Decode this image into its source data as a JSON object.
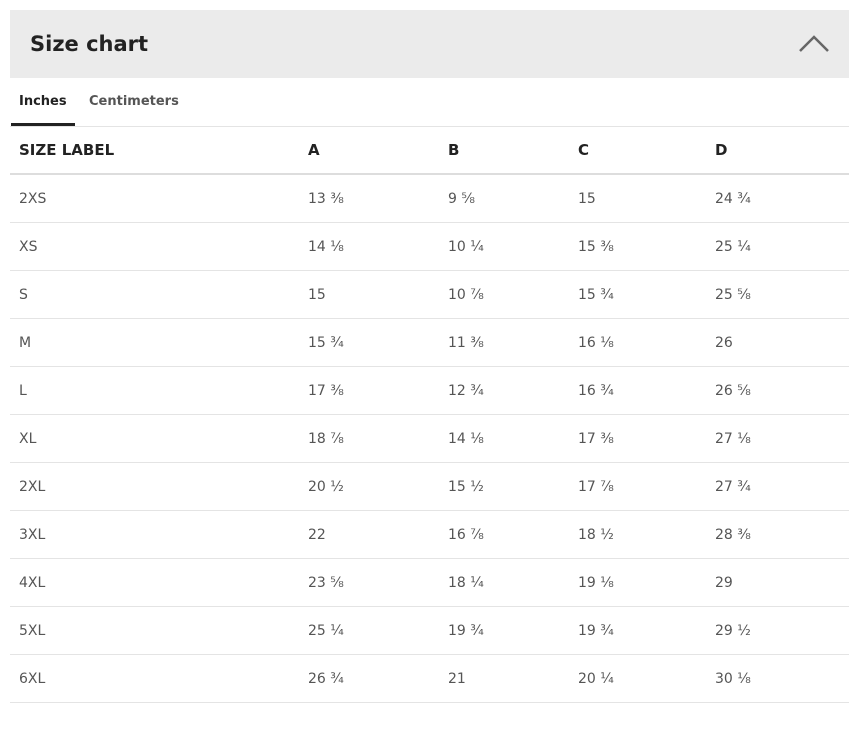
{
  "header": {
    "title": "Size chart"
  },
  "tabs": [
    "Inches",
    "Centimeters"
  ],
  "table": {
    "columns": [
      "SIZE LABEL",
      "A",
      "B",
      "C",
      "D"
    ],
    "rows": [
      [
        "2XS",
        "13 ⅜",
        "9 ⅝",
        "15",
        "24 ¾"
      ],
      [
        "XS",
        "14 ⅛",
        "10 ¼",
        "15 ⅜",
        "25 ¼"
      ],
      [
        "S",
        "15",
        "10 ⅞",
        "15 ¾",
        "25 ⅝"
      ],
      [
        "M",
        "15 ¾",
        "11 ⅜",
        "16 ⅛",
        "26"
      ],
      [
        "L",
        "17 ⅜",
        "12 ¾",
        "16 ¾",
        "26 ⅝"
      ],
      [
        "XL",
        "18 ⅞",
        "14 ⅛",
        "17 ⅜",
        "27 ⅛"
      ],
      [
        "2XL",
        "20 ½",
        "15 ½",
        "17 ⅞",
        "27 ¾"
      ],
      [
        "3XL",
        "22",
        "16 ⅞",
        "18 ½",
        "28 ⅜"
      ],
      [
        "4XL",
        "23 ⅝",
        "18 ¼",
        "19 ⅛",
        "29"
      ],
      [
        "5XL",
        "25 ¼",
        "19 ¾",
        "19 ¾",
        "29 ½"
      ],
      [
        "6XL",
        "26 ¾",
        "21",
        "20 ¼",
        "30 ⅛"
      ]
    ]
  }
}
